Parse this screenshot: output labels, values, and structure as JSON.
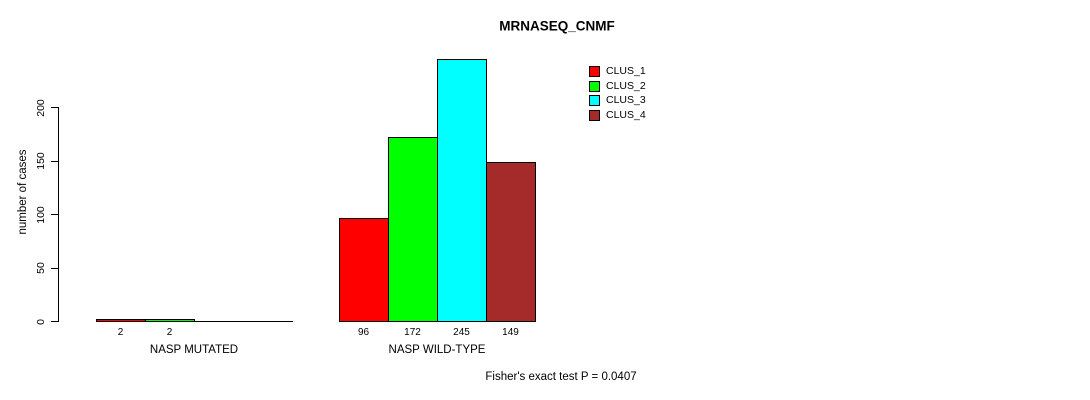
{
  "title": "MRNASEQ_CNMF",
  "footer": "Fisher's exact test P = 0.0407",
  "y_axis": {
    "label": "number of cases",
    "tick_labels": [
      "0",
      "50",
      "100",
      "150",
      "200"
    ]
  },
  "colors": {
    "background": "#FFFFFF",
    "axis": "#000000",
    "text": "#000000"
  },
  "chart_data": {
    "type": "bar",
    "title": "MRNASEQ_CNMF",
    "xlabel": "",
    "ylabel": "number of cases",
    "ylim": [
      0,
      245
    ],
    "yticks": [
      0,
      50,
      100,
      150,
      200
    ],
    "grid": false,
    "legend_position": "top-right-inside",
    "categories": [
      "NASP MUTATED",
      "NASP WILD-TYPE"
    ],
    "series": [
      {
        "name": "CLUS_1",
        "color": "#FF0000",
        "values": [
          2,
          96
        ]
      },
      {
        "name": "CLUS_2",
        "color": "#00FF00",
        "values": [
          2,
          172
        ]
      },
      {
        "name": "CLUS_3",
        "color": "#00FFFF",
        "values": [
          0,
          245
        ]
      },
      {
        "name": "CLUS_4",
        "color": "#A52A2A",
        "values": [
          0,
          149
        ]
      }
    ],
    "bar_value_labels": [
      [
        "2",
        "2",
        "",
        ""
      ],
      [
        "96",
        "172",
        "245",
        "149"
      ]
    ],
    "annotation": "Fisher's exact test P = 0.0407"
  }
}
